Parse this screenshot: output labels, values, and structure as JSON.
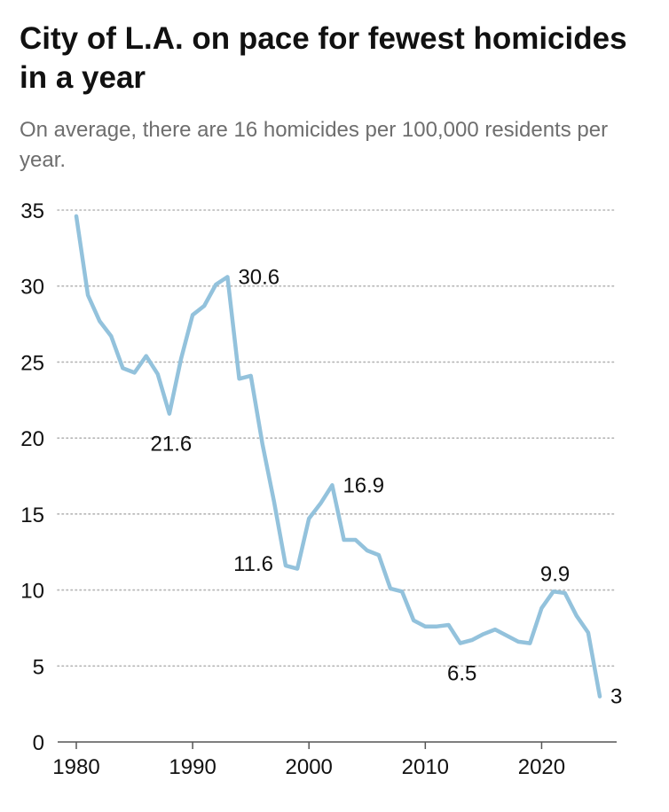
{
  "title": "City of L.A. on pace for fewest homicides in a year",
  "subtitle": "On average, there are 16 homicides per 100,000 residents per year.",
  "colors": {
    "line": "#93c2dc",
    "grid": "#b5b5b5",
    "axis": "#555555",
    "text": "#111111",
    "subtitle": "#6e6e6e"
  },
  "chart_data": {
    "type": "line",
    "title": "City of L.A. on pace for fewest homicides in a year",
    "subtitle": "On average, there are 16 homicides per 100,000 residents per year.",
    "xlabel": "",
    "ylabel": "",
    "xlim": [
      1980,
      2025
    ],
    "ylim": [
      0,
      35
    ],
    "x_ticks": [
      1980,
      1990,
      2000,
      2010,
      2020
    ],
    "y_ticks": [
      0,
      5,
      10,
      15,
      20,
      25,
      30,
      35
    ],
    "grid": "horizontal dotted",
    "series": [
      {
        "x": [
          1980,
          1981,
          1982,
          1983,
          1984,
          1985,
          1986,
          1987,
          1988,
          1989,
          1990,
          1991,
          1992,
          1993,
          1994,
          1995,
          1996,
          1997,
          1998,
          1999,
          2000,
          2001,
          2002,
          2003,
          2004,
          2005,
          2006,
          2007,
          2008,
          2009,
          2010,
          2011,
          2012,
          2013,
          2014,
          2015,
          2016,
          2017,
          2018,
          2019,
          2020,
          2021,
          2022,
          2023,
          2024,
          2025
        ],
        "values": [
          34.6,
          29.4,
          27.7,
          26.7,
          24.6,
          24.3,
          25.4,
          24.2,
          21.6,
          25.2,
          28.1,
          28.7,
          30.1,
          30.6,
          23.9,
          24.1,
          19.6,
          15.8,
          11.6,
          11.4,
          14.7,
          15.7,
          16.9,
          13.3,
          13.3,
          12.6,
          12.3,
          10.1,
          9.9,
          8.0,
          7.6,
          7.6,
          7.7,
          6.5,
          6.7,
          7.1,
          7.4,
          7.0,
          6.6,
          6.5,
          8.8,
          9.9,
          9.8,
          8.3,
          7.2,
          3.0
        ]
      }
    ],
    "annotations": [
      {
        "x": 1993,
        "y": 30.6,
        "text": "30.6",
        "position": "right"
      },
      {
        "x": 1988,
        "y": 21.6,
        "text": "21.6",
        "position": "below"
      },
      {
        "x": 2002,
        "y": 16.9,
        "text": "16.9",
        "position": "right"
      },
      {
        "x": 1998,
        "y": 11.6,
        "text": "11.6",
        "position": "left"
      },
      {
        "x": 2021,
        "y": 9.9,
        "text": "9.9",
        "position": "above"
      },
      {
        "x": 2013,
        "y": 6.5,
        "text": "6.5",
        "position": "below"
      },
      {
        "x": 2025,
        "y": 3.0,
        "text": "3",
        "position": "right"
      }
    ]
  }
}
